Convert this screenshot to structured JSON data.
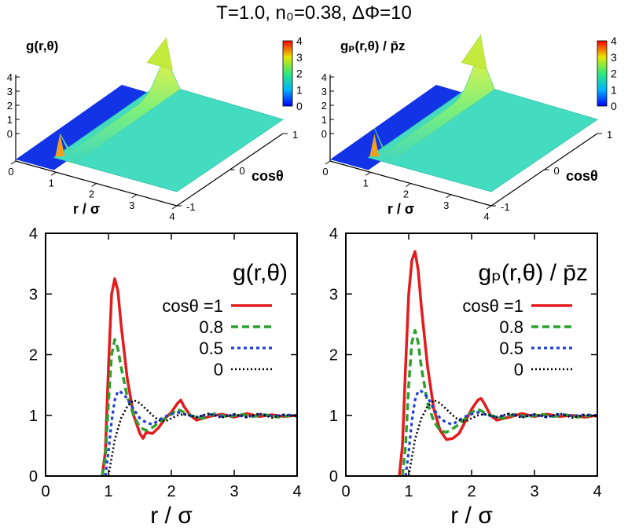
{
  "title": "T=1.0, n₀=0.38, ΔΦ=10",
  "colors": {
    "cos1": "#e41a1c",
    "cos08": "#2ca02c",
    "cos05": "#1f3fd8",
    "cos0": "#000000"
  },
  "surfaces": [
    {
      "title": "g(r,θ)",
      "r_ticks": [
        "0",
        "1",
        "2",
        "3",
        "4"
      ],
      "cos_ticks": [
        "-1",
        "0",
        "1"
      ],
      "z_ticks": [
        "0",
        "1",
        "2",
        "3",
        "4"
      ],
      "colorbar_ticks": [
        "0",
        "1",
        "2",
        "3",
        "4"
      ],
      "xlabel": "r / σ",
      "ylabel": "cosθ"
    },
    {
      "title": "gₚ(r,θ) / p̄z",
      "r_ticks": [
        "0",
        "1",
        "2",
        "3",
        "4"
      ],
      "cos_ticks": [
        "-1",
        "0",
        "1"
      ],
      "z_ticks": [
        "0",
        "1",
        "2",
        "3",
        "4"
      ],
      "colorbar_ticks": [
        "0",
        "1",
        "2",
        "3",
        "4"
      ],
      "xlabel": "r / σ",
      "ylabel": "cosθ"
    }
  ],
  "chart_data": [
    {
      "type": "line",
      "title": "g(r,θ)",
      "xlabel": "r / σ",
      "ylabel": "",
      "xlim": [
        0,
        4
      ],
      "ylim": [
        0,
        4
      ],
      "x_ticks": [
        "0",
        "1",
        "2",
        "3",
        "4"
      ],
      "y_ticks": [
        "0",
        "1",
        "2",
        "3",
        "4"
      ],
      "legend_position": "top-right",
      "series": [
        {
          "name": "cosθ =1",
          "style": "solid",
          "x": [
            0.9,
            0.95,
            1.0,
            1.05,
            1.1,
            1.15,
            1.2,
            1.3,
            1.4,
            1.5,
            1.55,
            1.6,
            1.7,
            1.8,
            1.9,
            2.0,
            2.1,
            2.15,
            2.2,
            2.3,
            2.4,
            2.6,
            2.8,
            3.0,
            3.2,
            3.4,
            3.6,
            3.8,
            4.0
          ],
          "y": [
            0.0,
            0.4,
            1.8,
            3.0,
            3.25,
            3.05,
            2.5,
            1.6,
            1.0,
            0.7,
            0.62,
            0.72,
            0.7,
            0.8,
            0.95,
            1.05,
            1.2,
            1.25,
            1.15,
            1.0,
            0.92,
            0.98,
            1.02,
            0.97,
            1.03,
            0.98,
            1.01,
            0.98,
            1.0
          ]
        },
        {
          "name": "0.8",
          "style": "dashed",
          "x": [
            0.9,
            0.95,
            1.0,
            1.05,
            1.1,
            1.15,
            1.2,
            1.3,
            1.4,
            1.5,
            1.6,
            1.7,
            1.8,
            1.9,
            2.0,
            2.1,
            2.2,
            2.3,
            2.5,
            2.7,
            2.9,
            3.1,
            3.3,
            3.5,
            3.7,
            3.9,
            4.0
          ],
          "y": [
            0.0,
            0.3,
            1.2,
            2.0,
            2.25,
            2.1,
            1.8,
            1.3,
            1.0,
            0.8,
            0.75,
            0.8,
            0.88,
            0.95,
            1.02,
            1.1,
            1.05,
            1.0,
            0.95,
            1.03,
            0.97,
            1.02,
            0.98,
            1.01,
            0.97,
            1.0,
            0.99
          ]
        },
        {
          "name": "0.5",
          "style": "dotted",
          "x": [
            0.95,
            1.0,
            1.05,
            1.1,
            1.15,
            1.2,
            1.3,
            1.4,
            1.5,
            1.6,
            1.7,
            1.8,
            1.9,
            2.0,
            2.1,
            2.2,
            2.4,
            2.6,
            2.8,
            3.0,
            3.2,
            3.4,
            3.6,
            3.8,
            4.0
          ],
          "y": [
            0.0,
            0.4,
            0.9,
            1.25,
            1.4,
            1.38,
            1.28,
            1.1,
            0.95,
            0.88,
            0.85,
            0.92,
            0.98,
            1.02,
            1.05,
            1.02,
            0.97,
            1.02,
            0.98,
            1.01,
            0.97,
            1.02,
            0.99,
            1.01,
            1.0
          ]
        },
        {
          "name": "0",
          "style": "dotted-fine",
          "x": [
            1.0,
            1.05,
            1.1,
            1.2,
            1.3,
            1.4,
            1.5,
            1.6,
            1.7,
            1.8,
            1.9,
            2.0,
            2.1,
            2.2,
            2.4,
            2.6,
            2.8,
            3.0,
            3.2,
            3.4,
            3.6,
            3.8,
            4.0
          ],
          "y": [
            0.0,
            0.3,
            0.6,
            0.95,
            1.15,
            1.25,
            1.2,
            1.1,
            1.0,
            0.92,
            0.9,
            0.95,
            1.0,
            1.02,
            0.97,
            1.03,
            0.96,
            1.02,
            0.97,
            1.03,
            0.96,
            1.01,
            0.98
          ]
        }
      ]
    },
    {
      "type": "line",
      "title": "gₚ(r,θ) / p̄z",
      "xlabel": "r / σ",
      "ylabel": "",
      "xlim": [
        0,
        4
      ],
      "ylim": [
        0,
        4
      ],
      "x_ticks": [
        "0",
        "1",
        "2",
        "3",
        "4"
      ],
      "y_ticks": [
        "0",
        "1",
        "2",
        "3",
        "4"
      ],
      "legend_position": "top-right",
      "series": [
        {
          "name": "cosθ =1",
          "style": "solid",
          "x": [
            0.85,
            0.9,
            0.95,
            1.0,
            1.05,
            1.1,
            1.15,
            1.2,
            1.3,
            1.4,
            1.5,
            1.6,
            1.7,
            1.8,
            1.9,
            2.0,
            2.1,
            2.15,
            2.2,
            2.3,
            2.4,
            2.6,
            2.8,
            3.0,
            3.2,
            3.4,
            3.6,
            3.8,
            4.0
          ],
          "y": [
            0.0,
            0.5,
            1.8,
            3.0,
            3.55,
            3.7,
            3.4,
            2.8,
            1.8,
            1.1,
            0.75,
            0.6,
            0.62,
            0.7,
            0.9,
            1.1,
            1.25,
            1.28,
            1.2,
            1.0,
            0.92,
            0.97,
            1.03,
            0.98,
            1.02,
            0.98,
            1.0,
            0.97,
            1.0
          ]
        },
        {
          "name": "0.8",
          "style": "dashed",
          "x": [
            0.9,
            0.95,
            1.0,
            1.05,
            1.1,
            1.15,
            1.2,
            1.3,
            1.4,
            1.5,
            1.6,
            1.7,
            1.8,
            1.9,
            2.0,
            2.1,
            2.2,
            2.3,
            2.5,
            2.7,
            2.9,
            3.1,
            3.3,
            3.5,
            3.7,
            3.9,
            4.0
          ],
          "y": [
            0.0,
            0.5,
            1.5,
            2.2,
            2.4,
            2.2,
            1.8,
            1.2,
            0.9,
            0.75,
            0.72,
            0.78,
            0.85,
            0.95,
            1.05,
            1.1,
            1.05,
            1.0,
            0.95,
            1.02,
            0.97,
            1.02,
            0.98,
            1.01,
            0.97,
            1.0,
            0.99
          ]
        },
        {
          "name": "0.5",
          "style": "dotted",
          "x": [
            0.95,
            1.0,
            1.05,
            1.1,
            1.15,
            1.2,
            1.3,
            1.4,
            1.5,
            1.6,
            1.7,
            1.8,
            1.9,
            2.0,
            2.1,
            2.2,
            2.4,
            2.6,
            2.8,
            3.0,
            3.2,
            3.4,
            3.6,
            3.8,
            4.0
          ],
          "y": [
            0.0,
            0.4,
            0.9,
            1.25,
            1.4,
            1.4,
            1.3,
            1.1,
            0.95,
            0.88,
            0.85,
            0.92,
            0.98,
            1.02,
            1.05,
            1.02,
            0.97,
            1.02,
            0.98,
            1.01,
            0.97,
            1.02,
            0.99,
            1.01,
            1.0
          ]
        },
        {
          "name": "0",
          "style": "dotted-fine",
          "x": [
            1.0,
            1.05,
            1.1,
            1.2,
            1.3,
            1.4,
            1.5,
            1.6,
            1.7,
            1.8,
            1.9,
            2.0,
            2.1,
            2.2,
            2.4,
            2.6,
            2.8,
            3.0,
            3.2,
            3.4,
            3.6,
            3.8,
            4.0
          ],
          "y": [
            0.0,
            0.3,
            0.6,
            0.95,
            1.15,
            1.25,
            1.2,
            1.1,
            1.0,
            0.92,
            0.9,
            0.95,
            1.0,
            1.02,
            0.97,
            1.03,
            0.96,
            1.02,
            0.97,
            1.03,
            0.96,
            1.01,
            0.98
          ]
        }
      ]
    }
  ]
}
